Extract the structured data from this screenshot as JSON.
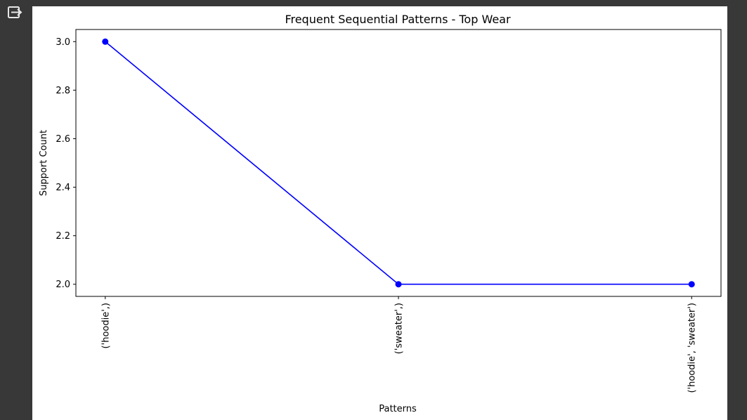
{
  "toolbar": {
    "output_icon": "output-exit-icon"
  },
  "chart_data": {
    "type": "line",
    "title": "Frequent Sequential Patterns - Top Wear",
    "xlabel": "Patterns",
    "ylabel": "Support Count",
    "categories": [
      "('hoodie',)",
      "('sweater',)",
      "('hoodie', 'sweater')"
    ],
    "series": [
      {
        "values": [
          3,
          2,
          2
        ],
        "color": "#0000ff",
        "marker": "circle"
      }
    ],
    "ylim": [
      1.95,
      3.05
    ],
    "yticks": [
      "2.0",
      "2.2",
      "2.4",
      "2.6",
      "2.8",
      "3.0"
    ],
    "grid": false,
    "legend": "none"
  }
}
